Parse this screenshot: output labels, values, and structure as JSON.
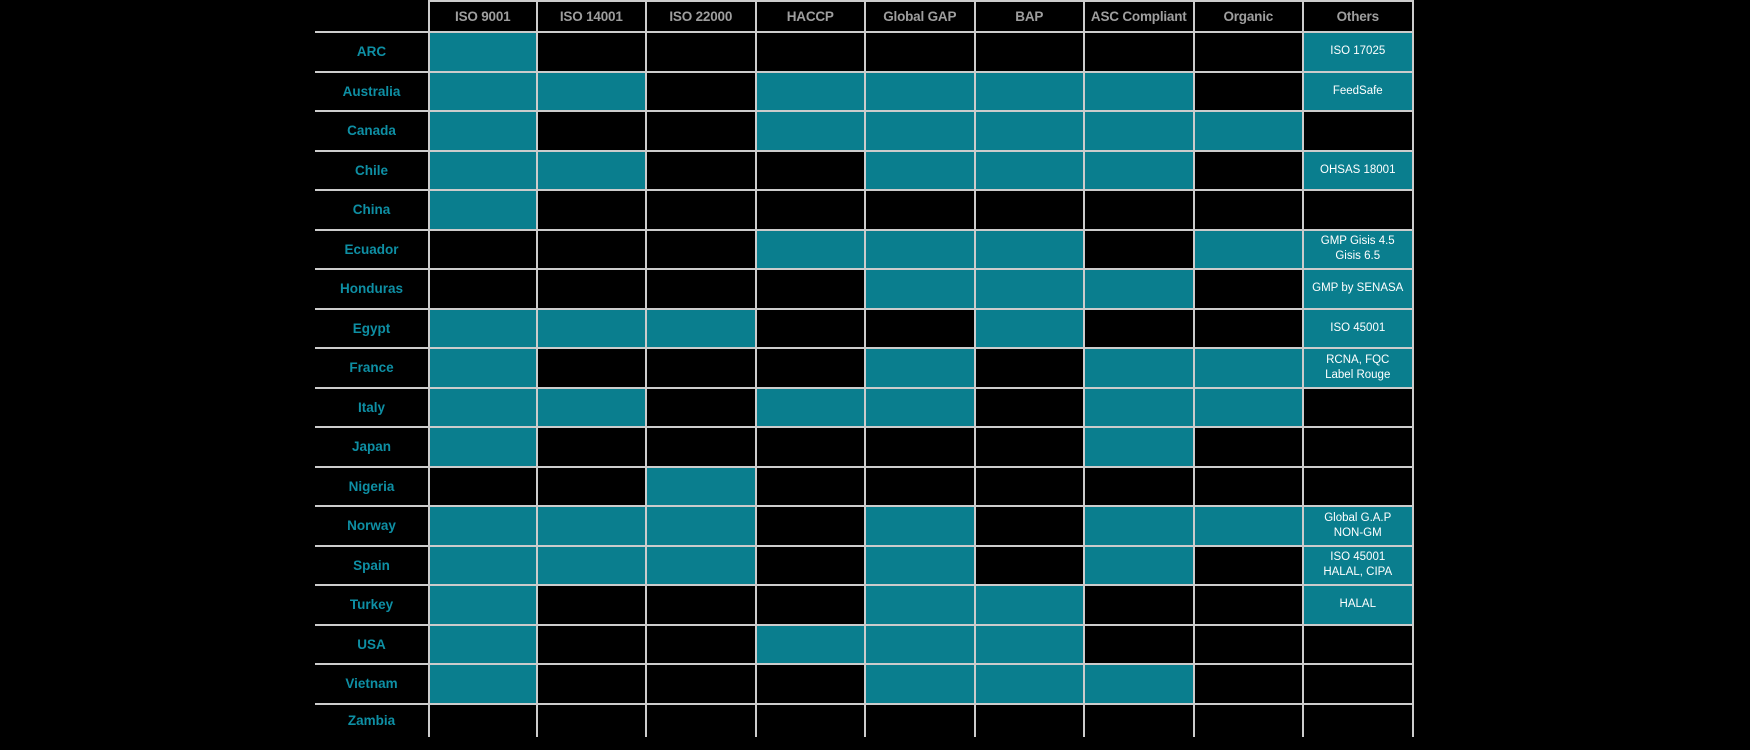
{
  "chart_data": {
    "type": "table",
    "title": "",
    "description": "Country vs certification matrix; filled teal cell = certification held",
    "columns": [
      "ISO 9001",
      "ISO 14001",
      "ISO 22000",
      "HACCP",
      "Global GAP",
      "BAP",
      "ASC Compliant",
      "Organic",
      "Others"
    ],
    "rows": [
      {
        "label": "ARC",
        "values": [
          1,
          0,
          0,
          0,
          0,
          0,
          0,
          0
        ],
        "others": "ISO 17025"
      },
      {
        "label": "Australia",
        "values": [
          1,
          1,
          0,
          1,
          1,
          1,
          1,
          0
        ],
        "others": "FeedSafe"
      },
      {
        "label": "Canada",
        "values": [
          1,
          0,
          0,
          1,
          1,
          1,
          1,
          1
        ],
        "others": ""
      },
      {
        "label": "Chile",
        "values": [
          1,
          1,
          0,
          0,
          1,
          1,
          1,
          0
        ],
        "others": "OHSAS 18001"
      },
      {
        "label": "China",
        "values": [
          1,
          0,
          0,
          0,
          0,
          0,
          0,
          0
        ],
        "others": ""
      },
      {
        "label": "Ecuador",
        "values": [
          0,
          0,
          0,
          1,
          1,
          1,
          0,
          1
        ],
        "others": "GMP Gisis 4.5\nGisis 6.5"
      },
      {
        "label": "Honduras",
        "values": [
          0,
          0,
          0,
          0,
          1,
          1,
          1,
          0
        ],
        "others": "GMP by SENASA"
      },
      {
        "label": "Egypt",
        "values": [
          1,
          1,
          1,
          0,
          0,
          1,
          0,
          0
        ],
        "others": "ISO 45001"
      },
      {
        "label": "France",
        "values": [
          1,
          0,
          0,
          0,
          1,
          0,
          1,
          1
        ],
        "others": "RCNA, FQC\nLabel Rouge"
      },
      {
        "label": "Italy",
        "values": [
          1,
          1,
          0,
          1,
          1,
          0,
          1,
          1
        ],
        "others": ""
      },
      {
        "label": "Japan",
        "values": [
          1,
          0,
          0,
          0,
          0,
          0,
          1,
          0
        ],
        "others": ""
      },
      {
        "label": "Nigeria",
        "values": [
          0,
          0,
          1,
          0,
          0,
          0,
          0,
          0
        ],
        "others": ""
      },
      {
        "label": "Norway",
        "values": [
          1,
          1,
          1,
          0,
          1,
          0,
          1,
          1
        ],
        "others": "Global G.A.P\nNON-GM"
      },
      {
        "label": "Spain",
        "values": [
          1,
          1,
          1,
          0,
          1,
          0,
          1,
          0
        ],
        "others": "ISO 45001\nHALAL, CIPA"
      },
      {
        "label": "Turkey",
        "values": [
          1,
          0,
          0,
          0,
          1,
          1,
          0,
          0
        ],
        "others": "HALAL"
      },
      {
        "label": "USA",
        "values": [
          1,
          0,
          0,
          1,
          1,
          1,
          0,
          0
        ],
        "others": ""
      },
      {
        "label": "Vietnam",
        "values": [
          1,
          0,
          0,
          0,
          1,
          1,
          1,
          0
        ],
        "others": ""
      },
      {
        "label": "Zambia",
        "values": [
          0,
          0,
          0,
          0,
          0,
          0,
          0,
          0
        ],
        "others": ""
      }
    ],
    "colors": {
      "filled_cell": "#0A7E8E",
      "grid_line": "#CCCCCC",
      "row_label_text": "#0E8FA4",
      "column_header_text": "#9E9E9E",
      "others_cell_text": "#FFFFFF",
      "background": "#000000"
    },
    "layout": {
      "grid": "on",
      "legend": "none",
      "header_position": "top",
      "row_labels_position": "left"
    }
  }
}
